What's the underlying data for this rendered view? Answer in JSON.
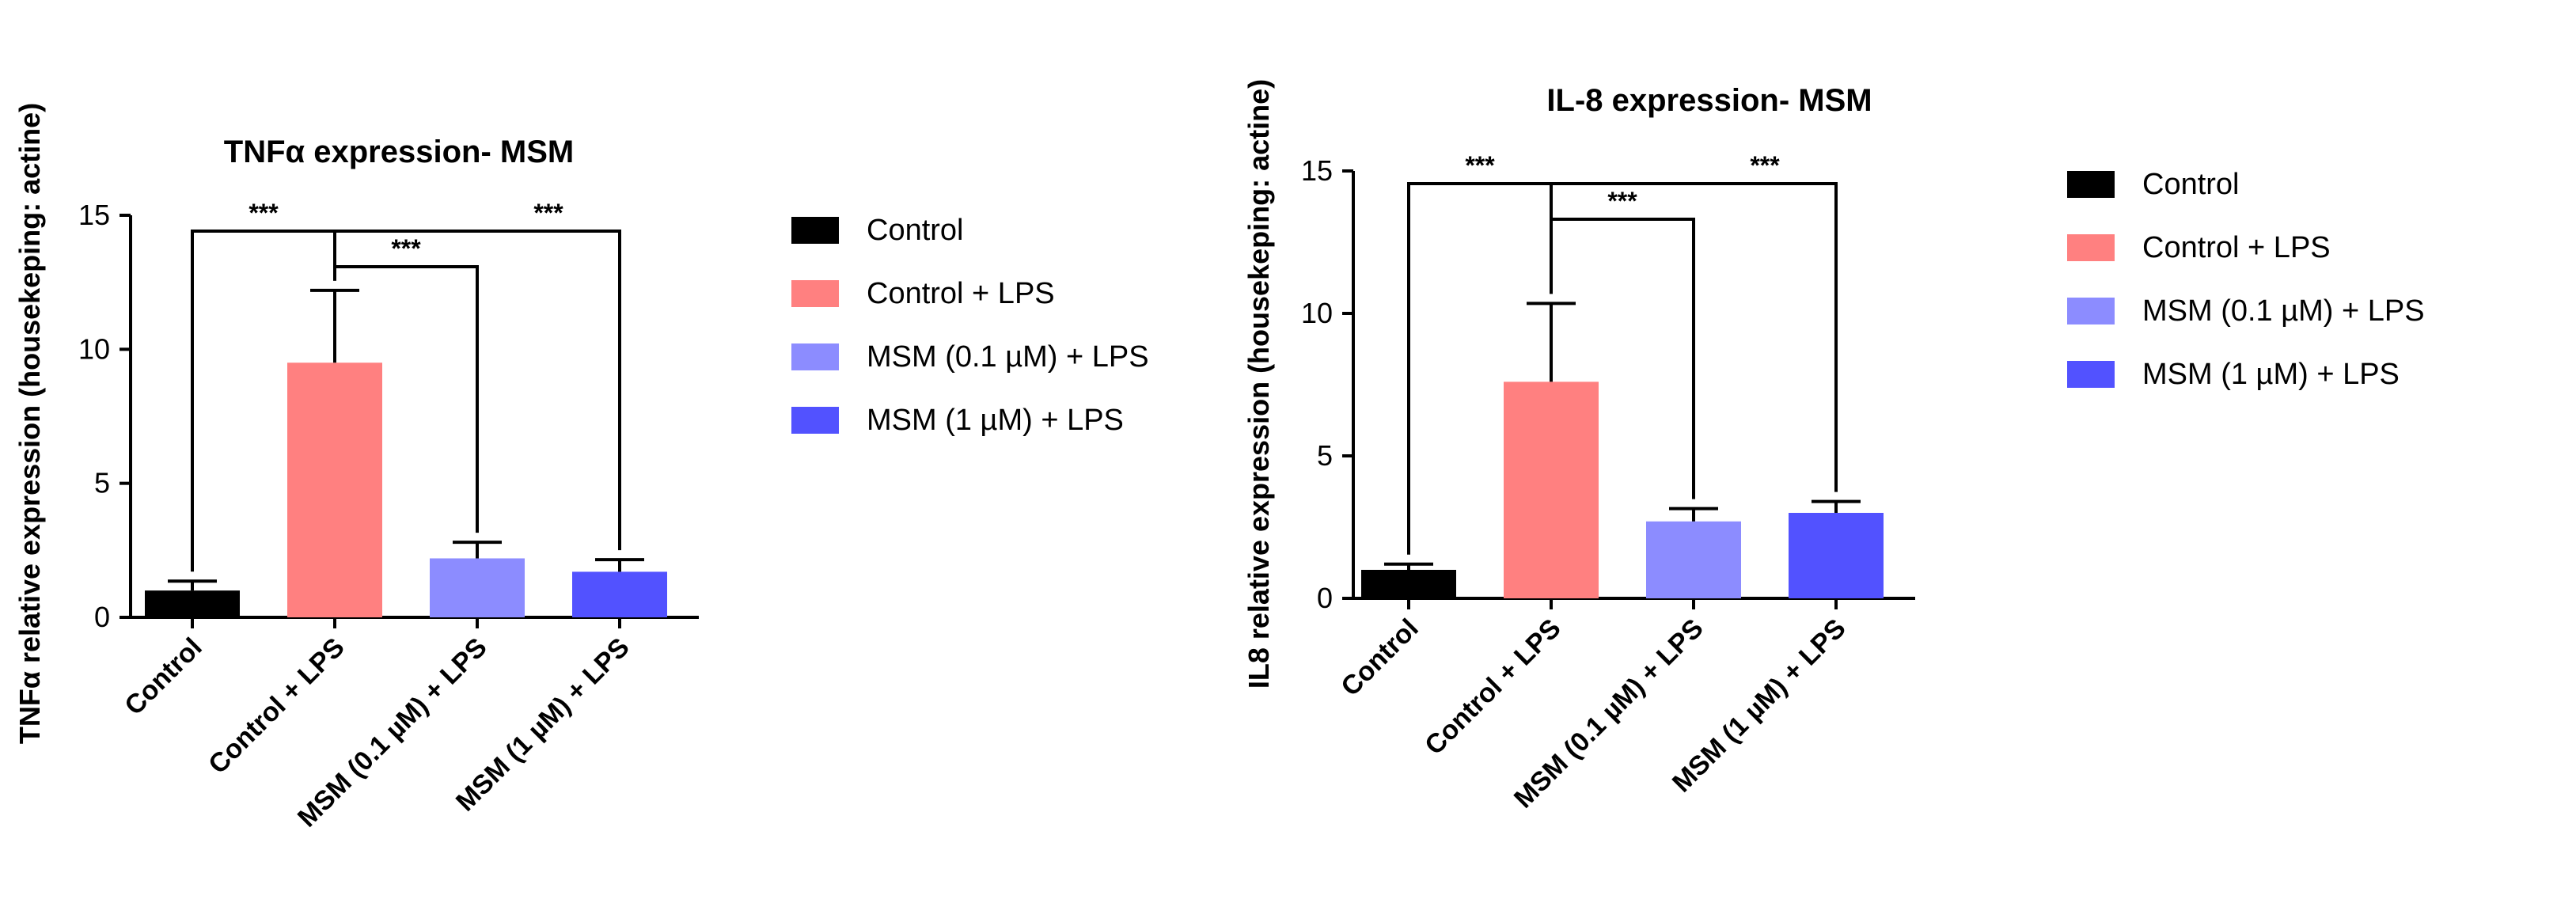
{
  "chart_data": [
    {
      "type": "bar",
      "title": "TNFα expression- MSM",
      "ylabel": "TNFα relative expression (housekeping: actine)",
      "xlabel": "",
      "ylim": [
        0,
        15
      ],
      "yticks": [
        "0",
        "5",
        "10",
        "15"
      ],
      "categories": [
        "Control",
        "Control + LPS",
        "MSM (0.1 µM) + LPS",
        "MSM (1 µM) + LPS"
      ],
      "values": [
        1.0,
        9.5,
        2.2,
        1.7
      ],
      "errors": [
        0.35,
        2.7,
        0.6,
        0.45
      ],
      "colors": [
        "#000000",
        "#ff8080",
        "#8c8cff",
        "#5252ff"
      ],
      "legend": [
        "Control",
        "Control + LPS",
        "MSM (0.1 µM) + LPS",
        "MSM (1 µM) + LPS"
      ],
      "significance": [
        {
          "from": 1,
          "to": 0,
          "label": "***"
        },
        {
          "from": 1,
          "to": 2,
          "label": "***"
        },
        {
          "from": 1,
          "to": 3,
          "label": "***"
        }
      ]
    },
    {
      "type": "bar",
      "title": "IL-8 expression- MSM",
      "ylabel": "IL8 relative expression (housekeping: actine)",
      "xlabel": "",
      "ylim": [
        0,
        15
      ],
      "yticks": [
        "0",
        "5",
        "10",
        "15"
      ],
      "categories": [
        "Control",
        "Control + LPS",
        "MSM (0.1 µM) + LPS",
        "MSM (1 µM) + LPS"
      ],
      "values": [
        1.0,
        7.6,
        2.7,
        3.0
      ],
      "errors": [
        0.2,
        2.75,
        0.45,
        0.4
      ],
      "colors": [
        "#000000",
        "#ff8080",
        "#8c8cff",
        "#5252ff"
      ],
      "legend": [
        "Control",
        "Control + LPS",
        "MSM (0.1 µM) + LPS",
        "MSM (1 µM) + LPS"
      ],
      "significance": [
        {
          "from": 1,
          "to": 0,
          "label": "***"
        },
        {
          "from": 1,
          "to": 2,
          "label": "***"
        },
        {
          "from": 1,
          "to": 3,
          "label": "***"
        }
      ]
    }
  ]
}
